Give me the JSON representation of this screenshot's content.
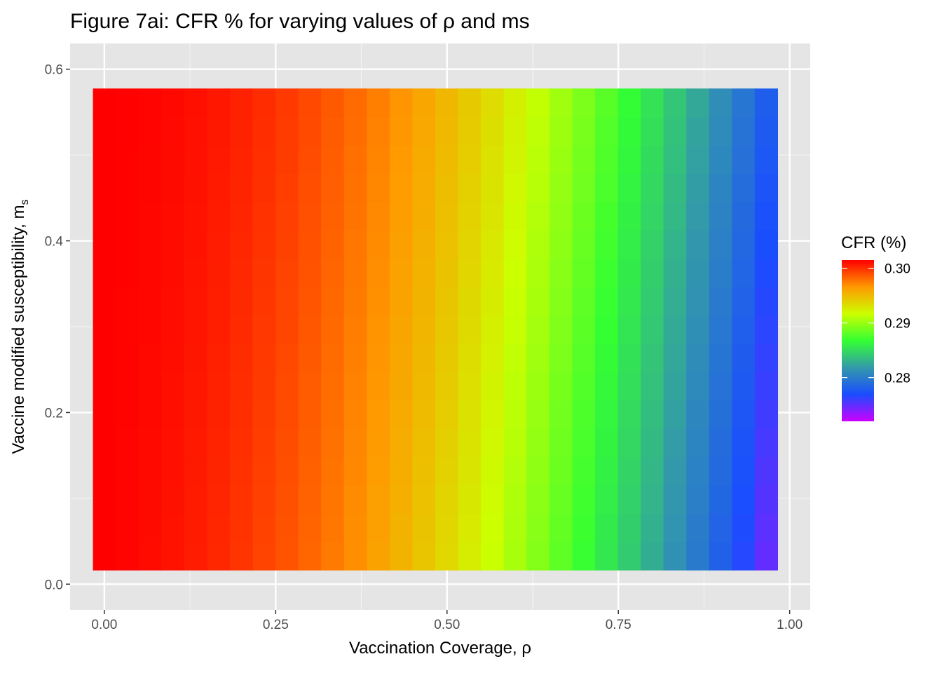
{
  "chart_data": {
    "type": "heatmap",
    "title": "Figure 7ai: CFR % for varying values of ρ and ms",
    "xlabel": "Vaccination Coverage,  ρ",
    "ylabel": "Vaccine modified susceptibility, m",
    "ylabel_subscript": "s",
    "x_ticks": [
      "0.00",
      "0.25",
      "0.50",
      "0.75",
      "1.00"
    ],
    "y_ticks": [
      "0.0",
      "0.2",
      "0.4",
      "0.6"
    ],
    "xlim": [
      -0.05,
      1.03
    ],
    "ylim": [
      -0.03,
      0.63
    ],
    "x": {
      "start": 0.0,
      "step": 0.0333,
      "count": 30
    },
    "y": {
      "start": 0.033,
      "step": 0.033,
      "count": 17
    },
    "values_rule": "CFR(x,y) = 0.3015 - 0.025*x^2 - 0.006*x*(0.6-y)",
    "legend": {
      "title": "CFR (%)",
      "ticks": [
        "0.30",
        "0.29",
        "0.28"
      ],
      "tick_values": [
        0.3,
        0.29,
        0.28
      ],
      "range": [
        0.272,
        0.3015
      ],
      "colors": [
        "#ff0000",
        "#ff9900",
        "#ccff00",
        "#33ff33",
        "#3399aa",
        "#1a4dff",
        "#cc00ff"
      ]
    },
    "grid": true,
    "legend_position": "right"
  }
}
